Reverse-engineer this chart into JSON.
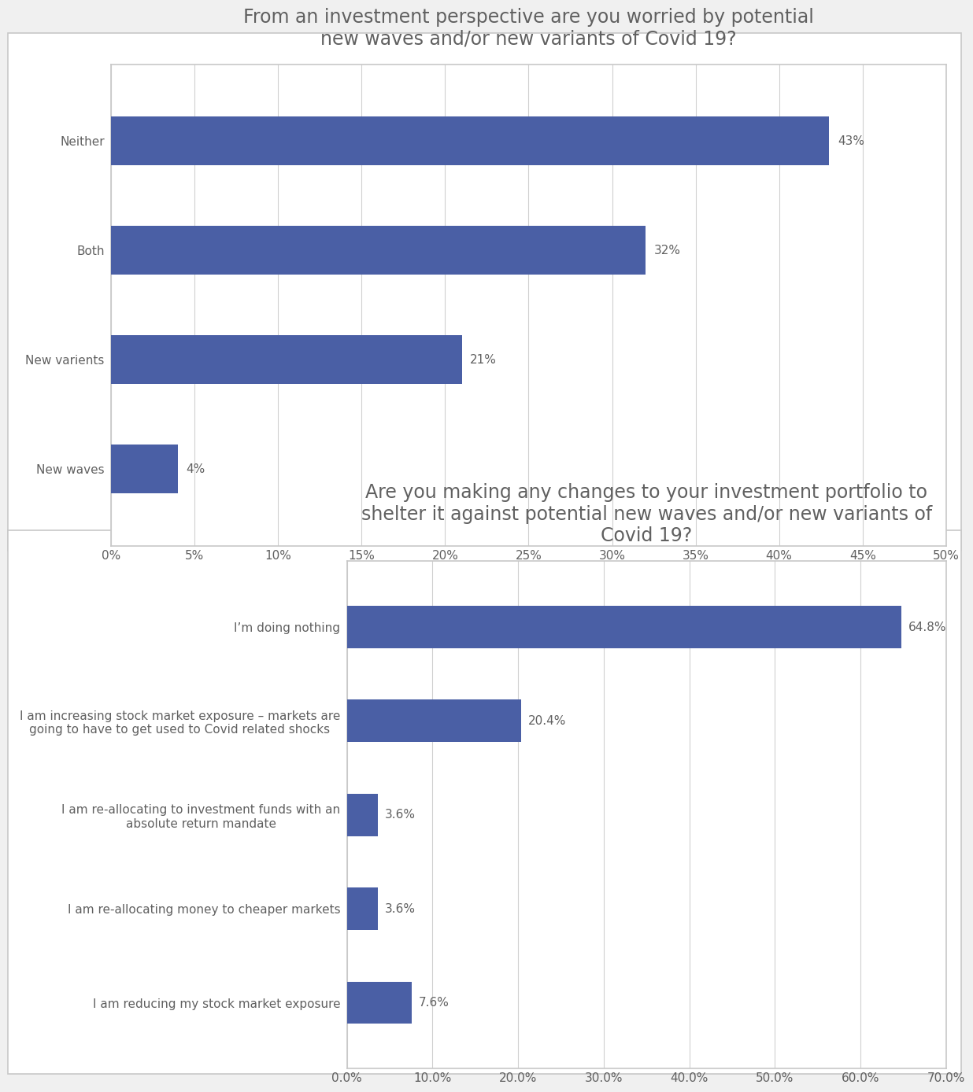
{
  "chart1": {
    "title": "From an investment perspective are you worried by potential\nnew waves and/or new variants of Covid 19?",
    "categories": [
      "New waves",
      "New varients",
      "Both",
      "Neither"
    ],
    "values": [
      4,
      21,
      32,
      43
    ],
    "labels": [
      "4%",
      "21%",
      "32%",
      "43%"
    ],
    "bar_color": "#4A5FA5",
    "xlim": [
      0,
      50
    ],
    "xticks": [
      0,
      5,
      10,
      15,
      20,
      25,
      30,
      35,
      40,
      45,
      50
    ],
    "xticklabels": [
      "0%",
      "5%",
      "10%",
      "15%",
      "20%",
      "25%",
      "30%",
      "35%",
      "40%",
      "45%",
      "50%"
    ]
  },
  "chart2": {
    "title": "Are you making any changes to your investment portfolio to\nshelter it against potential new waves and/or new variants of\nCovid 19?",
    "categories": [
      "I am reducing my stock market exposure",
      "I am re-allocating money to cheaper markets",
      "I am re-allocating to investment funds with an\nabsolute return mandate",
      "I am increasing stock market exposure – markets are\ngoing to have to get used to Covid related shocks",
      "I’m doing nothing"
    ],
    "values": [
      7.6,
      3.6,
      3.6,
      20.4,
      64.8
    ],
    "labels": [
      "7.6%",
      "3.6%",
      "3.6%",
      "20.4%",
      "64.8%"
    ],
    "bar_color": "#4A5FA5",
    "xlim": [
      0,
      70
    ],
    "xticks": [
      0,
      10,
      20,
      30,
      40,
      50,
      60,
      70
    ],
    "xticklabels": [
      "0.0%",
      "10.0%",
      "20.0%",
      "30.0%",
      "40.0%",
      "50.0%",
      "60.0%",
      "70.0%"
    ]
  },
  "bg_color": "#FFFFFF",
  "outer_bg": "#F0F0F0",
  "border_color": "#C8C8C8",
  "bar_height": 0.45,
  "title_fontsize": 17,
  "tick_fontsize": 11,
  "label_fontsize": 11,
  "category_fontsize": 11,
  "grid_color": "#D0D0D0",
  "text_color": "#606060"
}
